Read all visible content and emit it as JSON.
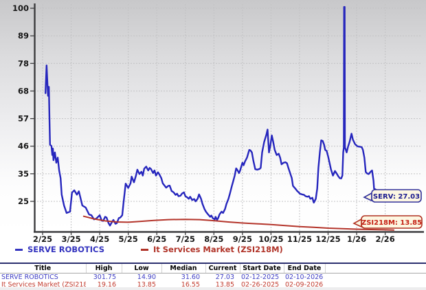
{
  "chart_data": {
    "type": "line",
    "y_ticks": [
      "100",
      "89",
      "78",
      "68",
      "57",
      "46",
      "35",
      "25"
    ],
    "x_ticks": [
      "2/25",
      "3/25",
      "4/25",
      "5/25",
      "6/25",
      "7/25",
      "8/25",
      "9/25",
      "10/25",
      "11/25",
      "12/25",
      "1/26",
      "2/26"
    ],
    "ylim": [
      13.3,
      101
    ],
    "grid": true,
    "series": [
      {
        "name": "SERVE ROBOTICS",
        "color": "#2626bd",
        "width": 2.4,
        "points": [
          [
            0.1,
            67
          ],
          [
            0.14,
            77.8
          ],
          [
            0.19,
            66
          ],
          [
            0.22,
            69.5
          ],
          [
            0.24,
            57
          ],
          [
            0.26,
            47
          ],
          [
            0.31,
            46.5
          ],
          [
            0.34,
            43
          ],
          [
            0.36,
            45.5
          ],
          [
            0.38,
            41
          ],
          [
            0.43,
            44
          ],
          [
            0.48,
            40
          ],
          [
            0.53,
            42
          ],
          [
            0.58,
            37
          ],
          [
            0.63,
            34
          ],
          [
            0.67,
            27.6
          ],
          [
            0.75,
            23.4
          ],
          [
            0.84,
            20.5
          ],
          [
            0.96,
            21
          ],
          [
            1.03,
            28.4
          ],
          [
            1.11,
            29.3
          ],
          [
            1.2,
            27.6
          ],
          [
            1.27,
            28.9
          ],
          [
            1.39,
            23.4
          ],
          [
            1.51,
            22.6
          ],
          [
            1.63,
            19.9
          ],
          [
            1.71,
            19.6
          ],
          [
            1.8,
            18.0
          ],
          [
            1.88,
            18.3
          ],
          [
            2.0,
            19.6
          ],
          [
            2.07,
            17.5
          ],
          [
            2.12,
            17.4
          ],
          [
            2.19,
            19.0
          ],
          [
            2.24,
            18.7
          ],
          [
            2.31,
            16.5
          ],
          [
            2.36,
            15.6
          ],
          [
            2.43,
            17.0
          ],
          [
            2.48,
            17.8
          ],
          [
            2.55,
            16.3
          ],
          [
            2.6,
            16.5
          ],
          [
            2.67,
            18.5
          ],
          [
            2.72,
            18.7
          ],
          [
            2.79,
            19.6
          ],
          [
            2.84,
            25.0
          ],
          [
            2.91,
            31.9
          ],
          [
            3.0,
            30.2
          ],
          [
            3.08,
            32.0
          ],
          [
            3.12,
            34.6
          ],
          [
            3.2,
            32.4
          ],
          [
            3.27,
            35.0
          ],
          [
            3.32,
            37.3
          ],
          [
            3.39,
            35.6
          ],
          [
            3.46,
            36.5
          ],
          [
            3.51,
            35.0
          ],
          [
            3.56,
            37.7
          ],
          [
            3.63,
            38.5
          ],
          [
            3.7,
            37.0
          ],
          [
            3.75,
            38.0
          ],
          [
            3.8,
            37.5
          ],
          [
            3.87,
            36.0
          ],
          [
            3.92,
            37.0
          ],
          [
            3.97,
            35.0
          ],
          [
            4.04,
            36.3
          ],
          [
            4.09,
            35.5
          ],
          [
            4.16,
            34.0
          ],
          [
            4.21,
            32.0
          ],
          [
            4.28,
            31.0
          ],
          [
            4.33,
            30.3
          ],
          [
            4.4,
            31.0
          ],
          [
            4.45,
            31.1
          ],
          [
            4.52,
            29.0
          ],
          [
            4.59,
            28.5
          ],
          [
            4.66,
            27.5
          ],
          [
            4.71,
            28.0
          ],
          [
            4.76,
            27.0
          ],
          [
            4.83,
            27.2
          ],
          [
            4.88,
            28.0
          ],
          [
            4.95,
            28.5
          ],
          [
            5.0,
            27.0
          ],
          [
            5.07,
            26.5
          ],
          [
            5.12,
            26.0
          ],
          [
            5.17,
            26.8
          ],
          [
            5.24,
            25.5
          ],
          [
            5.31,
            25.9
          ],
          [
            5.36,
            25.0
          ],
          [
            5.43,
            26.0
          ],
          [
            5.48,
            27.7
          ],
          [
            5.55,
            26.0
          ],
          [
            5.6,
            24.0
          ],
          [
            5.67,
            22.0
          ],
          [
            5.72,
            21.0
          ],
          [
            5.79,
            20.0
          ],
          [
            5.87,
            19.0
          ],
          [
            5.91,
            19.5
          ],
          [
            5.96,
            18.5
          ],
          [
            6.03,
            18.0
          ],
          [
            6.06,
            19.0
          ],
          [
            6.11,
            17.8
          ],
          [
            6.15,
            18.5
          ],
          [
            6.2,
            20.0
          ],
          [
            6.27,
            21.0
          ],
          [
            6.32,
            20.5
          ],
          [
            6.39,
            22.0
          ],
          [
            6.44,
            24.0
          ],
          [
            6.51,
            26.0
          ],
          [
            6.56,
            28.0
          ],
          [
            6.63,
            31.0
          ],
          [
            6.68,
            33.0
          ],
          [
            6.73,
            35.0
          ],
          [
            6.78,
            37.8
          ],
          [
            6.83,
            37.0
          ],
          [
            6.88,
            36.0
          ],
          [
            6.92,
            37.0
          ],
          [
            7.0,
            40.0
          ],
          [
            7.04,
            39.0
          ],
          [
            7.09,
            40.5
          ],
          [
            7.16,
            42.0
          ],
          [
            7.24,
            45.0
          ],
          [
            7.28,
            44.8
          ],
          [
            7.33,
            44.0
          ],
          [
            7.38,
            41.0
          ],
          [
            7.45,
            37.5
          ],
          [
            7.52,
            37.3
          ],
          [
            7.6,
            37.6
          ],
          [
            7.64,
            38.0
          ],
          [
            7.69,
            44.0
          ],
          [
            7.76,
            48.0
          ],
          [
            7.84,
            51.0
          ],
          [
            7.88,
            52.9
          ],
          [
            7.93,
            44.0
          ],
          [
            7.98,
            47.0
          ],
          [
            8.03,
            50.6
          ],
          [
            8.08,
            48.0
          ],
          [
            8.13,
            45.0
          ],
          [
            8.2,
            43.0
          ],
          [
            8.27,
            43.5
          ],
          [
            8.32,
            42.0
          ],
          [
            8.37,
            39.4
          ],
          [
            8.44,
            40.0
          ],
          [
            8.51,
            40.2
          ],
          [
            8.56,
            39.8
          ],
          [
            8.61,
            38.0
          ],
          [
            8.68,
            35.6
          ],
          [
            8.73,
            34.0
          ],
          [
            8.77,
            31.0
          ],
          [
            8.85,
            30.0
          ],
          [
            8.92,
            29.0
          ],
          [
            8.97,
            28.5
          ],
          [
            9.01,
            28.0
          ],
          [
            9.09,
            27.7
          ],
          [
            9.16,
            27.5
          ],
          [
            9.21,
            27.0
          ],
          [
            9.28,
            26.8
          ],
          [
            9.33,
            27.0
          ],
          [
            9.38,
            26.0
          ],
          [
            9.45,
            26.4
          ],
          [
            9.5,
            24.5
          ],
          [
            9.57,
            26.0
          ],
          [
            9.62,
            30.0
          ],
          [
            9.66,
            38.0
          ],
          [
            9.71,
            44.0
          ],
          [
            9.76,
            48.7
          ],
          [
            9.81,
            48.5
          ],
          [
            9.86,
            47.0
          ],
          [
            9.9,
            45.0
          ],
          [
            9.95,
            44.6
          ],
          [
            10.0,
            42.5
          ],
          [
            10.05,
            40.0
          ],
          [
            10.1,
            37.4
          ],
          [
            10.17,
            35.0
          ],
          [
            10.24,
            36.8
          ],
          [
            10.29,
            36.0
          ],
          [
            10.36,
            34.7
          ],
          [
            10.41,
            34.0
          ],
          [
            10.46,
            33.9
          ],
          [
            10.5,
            35.0
          ],
          [
            10.53,
            44.0
          ],
          [
            10.55,
            46.0
          ],
          [
            10.56,
            100.5
          ],
          [
            10.58,
            100.5
          ],
          [
            10.59,
            46.0
          ],
          [
            10.62,
            45.0
          ],
          [
            10.65,
            44.0
          ],
          [
            10.7,
            46.3
          ],
          [
            10.75,
            48.0
          ],
          [
            10.82,
            51.3
          ],
          [
            10.87,
            49.0
          ],
          [
            10.94,
            47.3
          ],
          [
            11.01,
            46.5
          ],
          [
            11.06,
            46.3
          ],
          [
            11.13,
            46.2
          ],
          [
            11.18,
            46.0
          ],
          [
            11.22,
            45.0
          ],
          [
            11.27,
            42.0
          ],
          [
            11.32,
            36.4
          ],
          [
            11.37,
            35.8
          ],
          [
            11.42,
            35.6
          ],
          [
            11.49,
            36.5
          ],
          [
            11.54,
            37.0
          ],
          [
            11.59,
            33.0
          ],
          [
            11.61,
            29.9
          ],
          [
            11.68,
            29.5
          ],
          [
            11.73,
            28.5
          ],
          [
            11.78,
            27.0
          ]
        ]
      },
      {
        "name": "It Services Market (ZSI218M)",
        "color": "#b4342a",
        "width": 2,
        "points": [
          [
            1.44,
            19.2
          ],
          [
            1.8,
            18.2
          ],
          [
            2.2,
            17.4
          ],
          [
            2.6,
            17.0
          ],
          [
            3.0,
            16.9
          ],
          [
            3.4,
            17.2
          ],
          [
            3.9,
            17.6
          ],
          [
            4.4,
            17.9
          ],
          [
            5.0,
            18.0
          ],
          [
            5.5,
            17.9
          ],
          [
            6.0,
            17.5
          ],
          [
            6.5,
            17.0
          ],
          [
            7.0,
            16.6
          ],
          [
            7.5,
            16.3
          ],
          [
            8.0,
            16.0
          ],
          [
            8.5,
            15.6
          ],
          [
            9.0,
            15.2
          ],
          [
            9.5,
            14.9
          ],
          [
            10.0,
            14.6
          ],
          [
            10.5,
            14.4
          ],
          [
            11.0,
            14.2
          ],
          [
            11.5,
            14.05
          ],
          [
            12.0,
            13.95
          ],
          [
            12.3,
            13.85
          ]
        ]
      }
    ],
    "callouts": [
      {
        "label": "SERV: 27.03",
        "border_color": "#30309a",
        "text_color": "#1b1b8f",
        "bg": "#fdf7e2"
      },
      {
        "label": "ZSI218M: 13.85",
        "border_color": "#b03020",
        "text_color": "#c41e12",
        "bg": "#fdf7e2"
      }
    ]
  },
  "legend": {
    "items": [
      {
        "label": "SERVE ROBOTICS",
        "color": "#3434bf"
      },
      {
        "label": "It Services Market (ZSI218M)",
        "color": "#b03328"
      }
    ]
  },
  "table": {
    "headers": [
      "Title",
      "High",
      "Low",
      "Median",
      "Current",
      "Start Date",
      "End Date"
    ],
    "rows": [
      {
        "cells": [
          "SERVE ROBOTICS",
          "301.75",
          "14.90",
          "31.60",
          "27.03",
          "02-12-2025",
          "02-10-2026"
        ],
        "color": "#3d3dc4",
        "underline": false
      },
      {
        "cells": [
          "It Services Market (ZSI218M)",
          "19.16",
          "13.85",
          "16.55",
          "13.85",
          "02-26-2025",
          "02-09-2026"
        ],
        "color": "#c23b2e",
        "underline": true
      }
    ]
  }
}
